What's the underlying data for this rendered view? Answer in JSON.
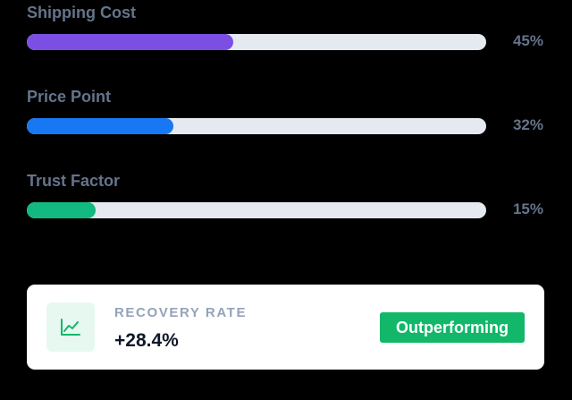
{
  "bars": [
    {
      "label": "Shipping Cost",
      "value": 45,
      "value_label": "45%",
      "color": "#7b4fe3"
    },
    {
      "label": "Price Point",
      "value": 32,
      "value_label": "32%",
      "color": "#1877f2"
    },
    {
      "label": "Trust Factor",
      "value": 15,
      "value_label": "15%",
      "color": "#12b981"
    }
  ],
  "card": {
    "label": "RECOVERY RATE",
    "value": "+28.4%",
    "badge": "Outperforming"
  }
}
